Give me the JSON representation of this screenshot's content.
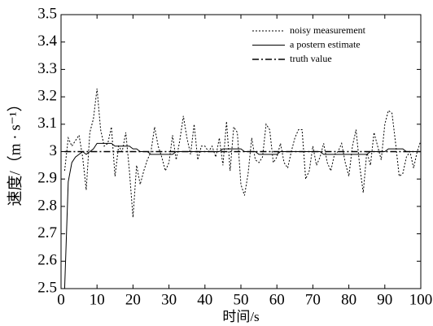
{
  "chart_data": {
    "type": "line",
    "x_label": "时间/s",
    "y_label": "速度/（m · s⁻¹）",
    "x": [
      1,
      2,
      3,
      4,
      5,
      6,
      7,
      8,
      9,
      10,
      11,
      12,
      13,
      14,
      15,
      16,
      17,
      18,
      19,
      20,
      21,
      22,
      23,
      24,
      25,
      26,
      27,
      28,
      29,
      30,
      31,
      32,
      33,
      34,
      35,
      36,
      37,
      38,
      39,
      40,
      41,
      42,
      43,
      44,
      45,
      46,
      47,
      48,
      49,
      50,
      51,
      52,
      53,
      54,
      55,
      56,
      57,
      58,
      59,
      60,
      61,
      62,
      63,
      64,
      65,
      66,
      67,
      68,
      69,
      70,
      71,
      72,
      73,
      74,
      75,
      76,
      77,
      78,
      79,
      80,
      81,
      82,
      83,
      84,
      85,
      86,
      87,
      88,
      89,
      90,
      91,
      92,
      93,
      94,
      95,
      96,
      97,
      98,
      99,
      100
    ],
    "series": [
      {
        "name": "noisy measurement",
        "color": "#000000",
        "style": "dotted",
        "values": [
          2.93,
          3.05,
          3.02,
          3.04,
          3.06,
          2.98,
          2.86,
          3.07,
          3.12,
          3.23,
          3.08,
          3.02,
          3.03,
          3.09,
          2.91,
          3.02,
          3.0,
          3.07,
          2.93,
          2.76,
          2.95,
          2.88,
          2.93,
          2.97,
          3.0,
          3.09,
          3.02,
          2.98,
          2.93,
          2.96,
          3.06,
          2.97,
          3.04,
          3.13,
          3.05,
          2.99,
          3.1,
          2.97,
          3.02,
          3.02,
          3.0,
          3.02,
          2.98,
          3.05,
          2.95,
          3.11,
          2.93,
          3.09,
          3.07,
          2.88,
          2.84,
          2.92,
          3.05,
          2.97,
          2.96,
          2.98,
          3.1,
          3.08,
          2.96,
          2.98,
          3.03,
          2.96,
          2.94,
          3.0,
          3.05,
          3.08,
          3.08,
          2.9,
          2.93,
          3.02,
          2.95,
          2.98,
          3.03,
          2.96,
          2.93,
          2.99,
          3.0,
          3.03,
          2.96,
          2.91,
          3.02,
          3.08,
          2.95,
          2.85,
          3.0,
          2.95,
          3.07,
          3.02,
          2.97,
          3.1,
          3.15,
          3.14,
          3.03,
          2.91,
          2.92,
          2.98,
          3.0,
          2.94,
          3.0,
          3.04
        ]
      },
      {
        "name": "a postern estimate",
        "color": "#000000",
        "style": "solid",
        "values": [
          2.5,
          2.89,
          2.96,
          2.98,
          2.99,
          3.0,
          2.99,
          3.0,
          3.01,
          3.03,
          3.03,
          3.03,
          3.03,
          3.03,
          3.02,
          3.02,
          3.02,
          3.02,
          3.02,
          3.01,
          3.01,
          3.0,
          3.0,
          3.0,
          2.99,
          2.99,
          2.99,
          2.99,
          2.99,
          2.99,
          2.99,
          3.0,
          3.0,
          3.0,
          3.0,
          3.0,
          3.0,
          3.0,
          3.0,
          3.0,
          3.0,
          3.0,
          3.0,
          3.0,
          3.01,
          3.01,
          3.01,
          3.01,
          3.01,
          3.01,
          3.0,
          3.0,
          3.0,
          3.0,
          2.99,
          2.99,
          2.99,
          2.99,
          2.99,
          2.99,
          3.0,
          3.0,
          3.0,
          3.0,
          3.0,
          3.0,
          3.0,
          3.0,
          3.0,
          3.0,
          3.0,
          3.0,
          2.99,
          2.99,
          2.99,
          2.99,
          2.99,
          2.99,
          2.99,
          2.99,
          2.99,
          2.99,
          2.99,
          2.99,
          2.99,
          3.0,
          3.0,
          3.0,
          3.0,
          3.0,
          3.01,
          3.01,
          3.01,
          3.01,
          3.01,
          3.0,
          3.0,
          3.0,
          3.0,
          3.0
        ]
      },
      {
        "name": "truth value",
        "color": "#000000",
        "style": "dashdot",
        "values": [
          3,
          3,
          3,
          3,
          3,
          3,
          3,
          3,
          3,
          3,
          3,
          3,
          3,
          3,
          3,
          3,
          3,
          3,
          3,
          3,
          3,
          3,
          3,
          3,
          3,
          3,
          3,
          3,
          3,
          3,
          3,
          3,
          3,
          3,
          3,
          3,
          3,
          3,
          3,
          3,
          3,
          3,
          3,
          3,
          3,
          3,
          3,
          3,
          3,
          3,
          3,
          3,
          3,
          3,
          3,
          3,
          3,
          3,
          3,
          3,
          3,
          3,
          3,
          3,
          3,
          3,
          3,
          3,
          3,
          3,
          3,
          3,
          3,
          3,
          3,
          3,
          3,
          3,
          3,
          3,
          3,
          3,
          3,
          3,
          3,
          3,
          3,
          3,
          3,
          3,
          3,
          3,
          3,
          3,
          3,
          3,
          3,
          3,
          3,
          3
        ]
      }
    ],
    "xlim": [
      0,
      100
    ],
    "xticks": [
      0,
      10,
      20,
      30,
      40,
      50,
      60,
      70,
      80,
      90,
      100
    ],
    "ylim": [
      2.5,
      3.5
    ],
    "yticks": [
      2.5,
      2.6,
      2.7,
      2.8,
      2.9,
      3,
      3.1,
      3.2,
      3.3,
      3.4,
      3.5
    ],
    "legend": "upper right"
  }
}
